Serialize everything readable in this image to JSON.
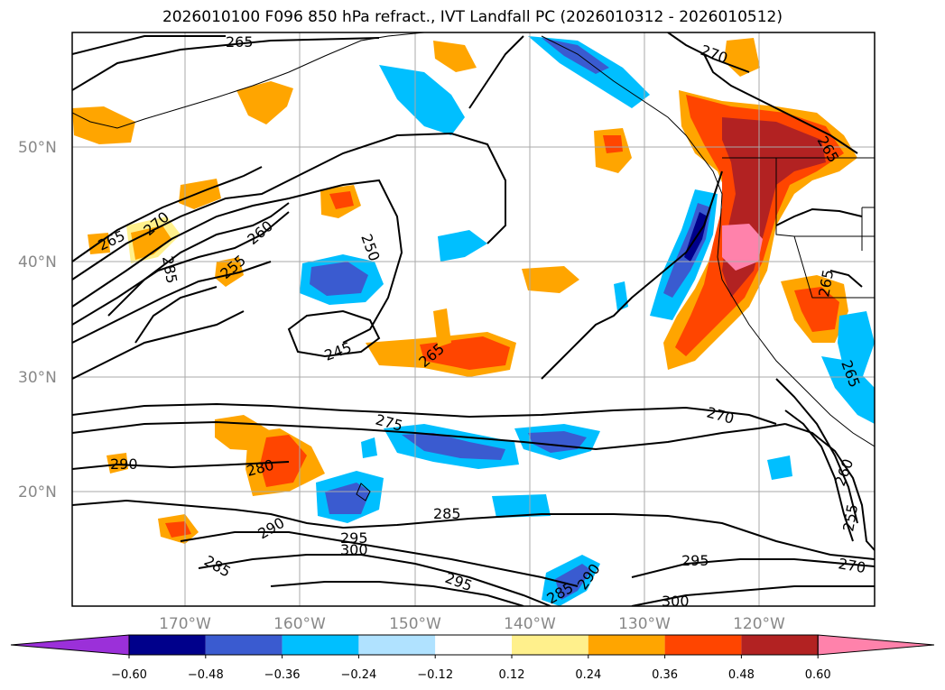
{
  "title": "2026010100 F096 850 hPa refract., IVT Landfall PC (2026010312 - 2026010512)",
  "latitude_labels": [
    "50°N",
    "40°N",
    "30°N",
    "20°N"
  ],
  "longitude_labels": [
    "170°W",
    "160°W",
    "150°W",
    "140°W",
    "130°W",
    "120°W"
  ],
  "contour_labels": [
    "265",
    "270",
    "265",
    "270",
    "285",
    "260",
    "255",
    "250",
    "245",
    "265",
    "275",
    "270",
    "280",
    "290",
    "285",
    "290",
    "295",
    "300",
    "285",
    "295",
    "295",
    "285",
    "290",
    "300",
    "260",
    "255",
    "270",
    "265",
    "265",
    "265"
  ],
  "colorbar": {
    "colors": [
      "#9b30d9",
      "#00008b",
      "#3a5bd0",
      "#00bfff",
      "#b0e2ff",
      "#ffffff",
      "#fff08c",
      "#ffa500",
      "#ff4500",
      "#b22222",
      "#ff82ab"
    ],
    "tick_labels": [
      "−0.60",
      "−0.48",
      "−0.36",
      "−0.24",
      "−0.12",
      "0.12",
      "0.24",
      "0.36",
      "0.48",
      "0.60"
    ]
  }
}
